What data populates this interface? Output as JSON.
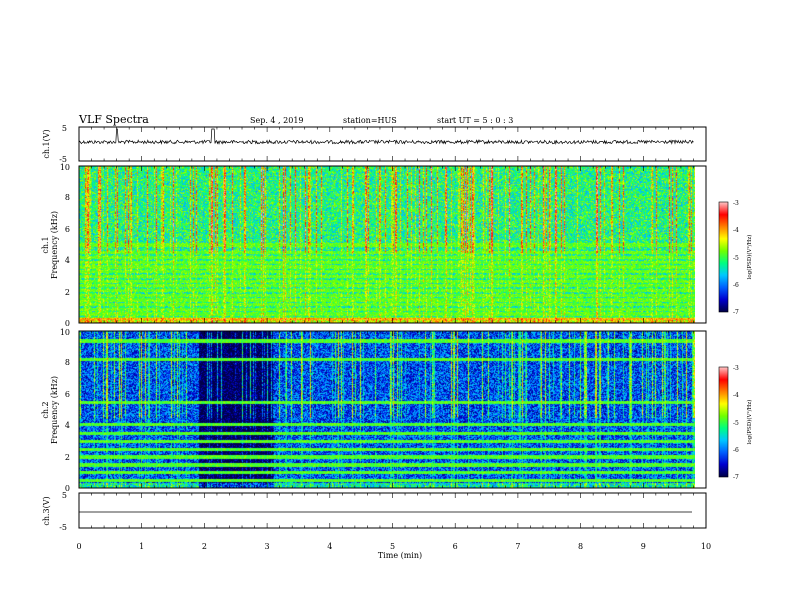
{
  "header": {
    "title": "VLF Spectra",
    "date": "Sep. 4 , 2019",
    "station": "station=HUS",
    "start": "start UT =  5 : 0 : 3"
  },
  "colors": {
    "background": "#ffffff",
    "axes": "#000000",
    "colormap": [
      "#00004a",
      "#0000d0",
      "#0060ff",
      "#00c8ff",
      "#00ff80",
      "#70ff00",
      "#ffff00",
      "#ff8000",
      "#ff0000",
      "#ffc0c0"
    ]
  },
  "chart_data": [
    {
      "type": "line",
      "name": "ch1_waveform",
      "ylabel": "ch.1(V)",
      "ylim": [
        -5,
        5
      ],
      "yticks": [
        "5",
        "-5"
      ],
      "baseline": 0,
      "x_range_min": [
        0,
        9.8
      ],
      "spikes_min": [
        0.6,
        2.12,
        2.15
      ]
    },
    {
      "type": "heatmap",
      "name": "ch1_spectrogram",
      "ylabel_line1": "ch.1",
      "ylabel_line2": "Frequency (kHz)",
      "ylim": [
        0,
        10
      ],
      "yticks": [
        "0",
        "2",
        "4",
        "6",
        "8",
        "10"
      ],
      "x_range_min": [
        0,
        9.8
      ],
      "background_level": -5.2,
      "lines_khz": [
        0.3,
        0.6,
        0.9,
        1.2,
        1.5,
        1.8,
        2.1,
        2.4,
        2.7,
        3.0,
        3.3,
        3.6,
        3.9,
        4.2,
        4.5,
        5.0
      ],
      "colorbar": {
        "label": "log(PSD)(V²/Hz)",
        "ticks": [
          "-3",
          "-4",
          "-5",
          "-6",
          "-7"
        ],
        "range": [
          -7,
          -3
        ]
      }
    },
    {
      "type": "heatmap",
      "name": "ch2_spectrogram",
      "ylabel_line1": "ch.2",
      "ylabel_line2": "Frequency (kHz)",
      "ylim": [
        0,
        10
      ],
      "yticks": [
        "0",
        "2",
        "4",
        "6",
        "8",
        "10"
      ],
      "x_range_min": [
        0,
        9.8
      ],
      "background_level": -6.2,
      "lines_khz": [
        0.5,
        1.0,
        1.5,
        2.0,
        2.5,
        3.0,
        3.5,
        4.1,
        5.5,
        8.2,
        9.4
      ],
      "quiet_band_min": [
        1.9,
        3.1
      ],
      "colorbar": {
        "label": "log(PSD)(V²/Hz)",
        "ticks": [
          "-3",
          "-4",
          "-5",
          "-6",
          "-7"
        ],
        "range": [
          -7,
          -3
        ]
      }
    },
    {
      "type": "line",
      "name": "ch3_waveform",
      "ylabel": "ch.3(V)",
      "ylim": [
        -5,
        5
      ],
      "yticks": [
        "5",
        "-5"
      ],
      "baseline": 0,
      "x_range_min": [
        0,
        9.8
      ],
      "xlabel": "Time (min)",
      "xlim": [
        0,
        10
      ],
      "xticks": [
        "0",
        "1",
        "2",
        "3",
        "4",
        "5",
        "6",
        "7",
        "8",
        "9",
        "10"
      ]
    }
  ]
}
